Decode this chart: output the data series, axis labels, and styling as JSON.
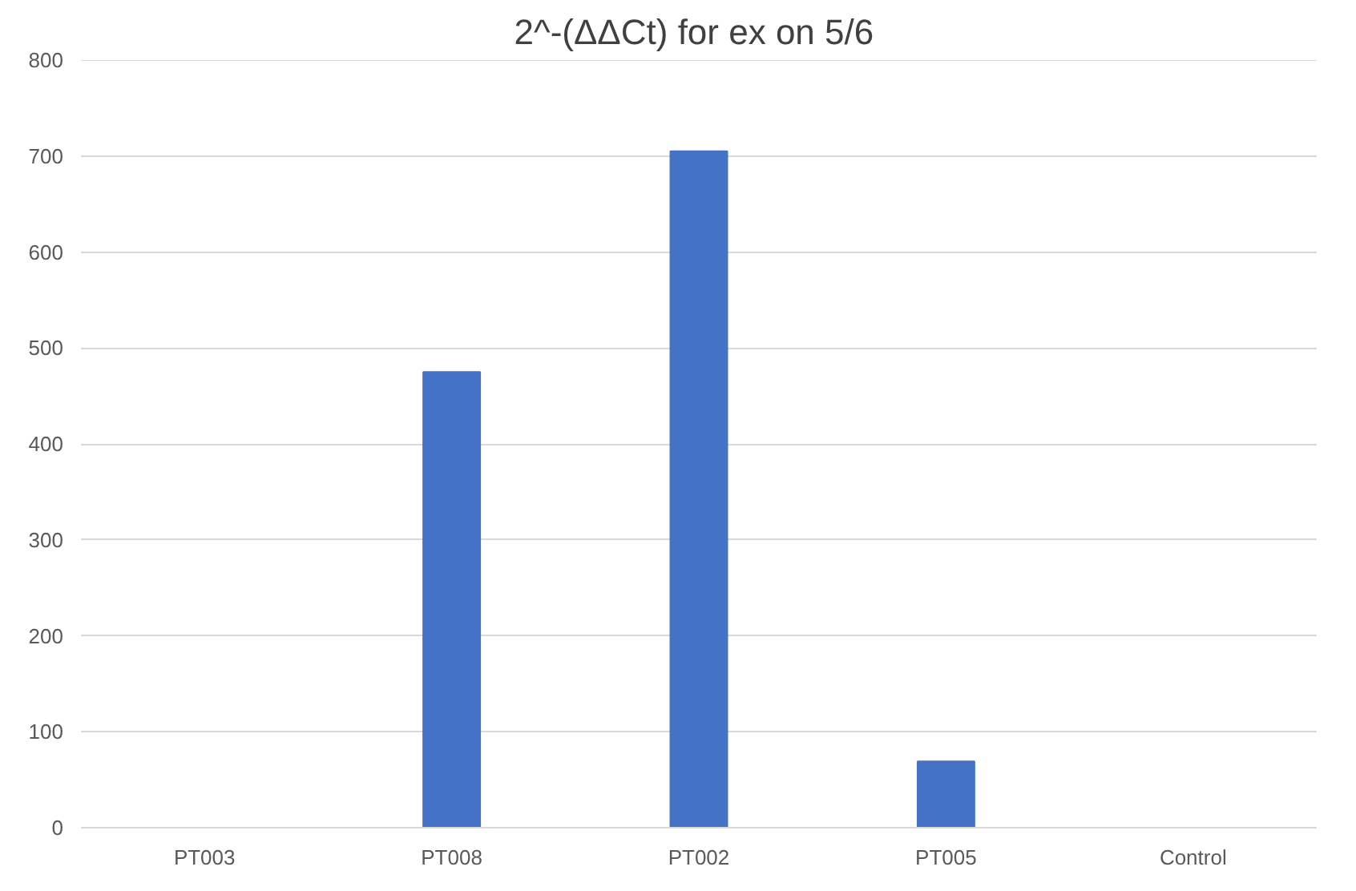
{
  "chart_data": {
    "type": "bar",
    "title": "2^-(ΔΔCt)  for ex on 5/6",
    "categories": [
      "PT003",
      "PT008",
      "PT002",
      "PT005",
      "Control"
    ],
    "values": [
      0,
      475,
      705,
      69,
      0
    ],
    "color": "#4472c4",
    "ylim": [
      0,
      800
    ],
    "yticks": [
      0,
      100,
      200,
      300,
      400,
      500,
      600,
      700,
      800
    ],
    "grid": "y"
  }
}
